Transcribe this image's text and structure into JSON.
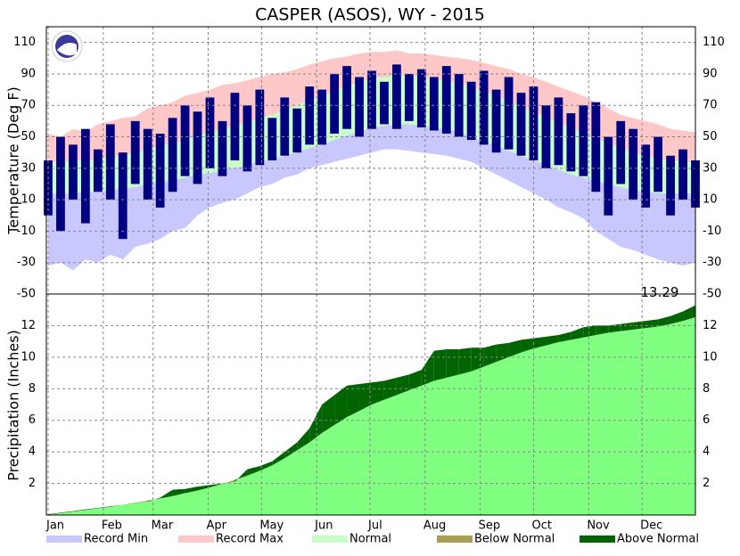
{
  "title": "CASPER (ASOS), WY - 2015",
  "legend": [
    {
      "name": "Record Min",
      "color": "#c8c8ff"
    },
    {
      "name": "Record Max",
      "color": "#ffc8c8"
    },
    {
      "name": "Normal",
      "color": "#c8ffc8"
    },
    {
      "name": "Below Normal",
      "color": "#a8a050"
    },
    {
      "name": "Above Normal",
      "color": "#006400"
    }
  ],
  "chart_data": [
    {
      "type": "temperature-band",
      "y_label": "Temperature (Deg F)",
      "x": [
        1,
        8,
        15,
        22,
        29,
        36,
        43,
        50,
        57,
        64,
        71,
        78,
        85,
        92,
        99,
        106,
        113,
        120,
        127,
        134,
        141,
        148,
        155,
        162,
        169,
        176,
        183,
        190,
        197,
        204,
        211,
        218,
        225,
        232,
        239,
        246,
        253,
        260,
        267,
        274,
        281,
        288,
        295,
        302,
        309,
        316,
        323,
        330,
        337,
        344,
        351,
        358,
        365
      ],
      "xlim": [
        0,
        365
      ],
      "ylim": [
        -50,
        120
      ],
      "yticks": [
        -50,
        -30,
        -10,
        10,
        30,
        50,
        70,
        90,
        110
      ],
      "grid": true,
      "series": [
        {
          "name": "Record Max",
          "color": "#ffc8c8",
          "values": [
            52,
            50,
            55,
            53,
            58,
            60,
            62,
            63,
            68,
            70,
            72,
            76,
            78,
            80,
            83,
            84,
            86,
            88,
            90,
            91,
            93,
            96,
            98,
            100,
            101,
            103,
            104,
            104,
            105,
            103,
            103,
            102,
            101,
            100,
            99,
            97,
            95,
            93,
            90,
            88,
            85,
            82,
            79,
            76,
            72,
            68,
            64,
            62,
            60,
            58,
            55,
            54,
            53
          ]
        },
        {
          "name": "Record Min",
          "color": "#c8c8ff",
          "values": [
            -32,
            -30,
            -35,
            -28,
            -30,
            -25,
            -28,
            -20,
            -18,
            -15,
            -10,
            -8,
            0,
            5,
            8,
            10,
            14,
            18,
            20,
            24,
            26,
            30,
            32,
            34,
            36,
            38,
            40,
            42,
            42,
            41,
            40,
            39,
            38,
            36,
            34,
            30,
            26,
            22,
            18,
            14,
            10,
            5,
            2,
            -2,
            -10,
            -15,
            -20,
            -22,
            -25,
            -28,
            -30,
            -32,
            -30
          ]
        },
        {
          "name": "Normal",
          "color": "#c8ffc8",
          "values": [
            34,
            34,
            35,
            35,
            36,
            37,
            38,
            40,
            42,
            44,
            46,
            48,
            51,
            53,
            55,
            57,
            59,
            62,
            64,
            67,
            70,
            73,
            76,
            79,
            82,
            85,
            87,
            88,
            89,
            89,
            88,
            87,
            86,
            84,
            82,
            79,
            76,
            73,
            69,
            66,
            62,
            59,
            56,
            52,
            49,
            46,
            43,
            40,
            38,
            36,
            35,
            34,
            34
          ],
          "low": [
            14,
            14,
            14,
            15,
            15,
            16,
            17,
            18,
            20,
            21,
            22,
            24,
            26,
            27,
            29,
            30,
            32,
            34,
            36,
            38,
            40,
            43,
            45,
            48,
            51,
            53,
            56,
            57,
            58,
            58,
            57,
            56,
            55,
            53,
            50,
            47,
            44,
            41,
            38,
            35,
            32,
            29,
            26,
            24,
            22,
            20,
            18,
            16,
            15,
            14,
            14,
            14,
            14
          ]
        },
        {
          "color": "#000080",
          "values": [
            35,
            50,
            45,
            55,
            42,
            58,
            40,
            60,
            55,
            52,
            62,
            70,
            66,
            75,
            60,
            78,
            70,
            80,
            62,
            75,
            68,
            82,
            80,
            90,
            95,
            88,
            92,
            85,
            96,
            90,
            93,
            88,
            95,
            90,
            85,
            92,
            80,
            88,
            78,
            82,
            70,
            75,
            65,
            70,
            72,
            50,
            60,
            55,
            45,
            50,
            38,
            42,
            35
          ],
          "low": [
            0,
            -10,
            10,
            -5,
            15,
            10,
            -15,
            20,
            10,
            5,
            15,
            25,
            20,
            30,
            25,
            35,
            28,
            32,
            35,
            38,
            40,
            45,
            45,
            52,
            55,
            50,
            55,
            58,
            55,
            60,
            56,
            54,
            52,
            50,
            48,
            45,
            40,
            42,
            38,
            35,
            30,
            32,
            28,
            25,
            15,
            0,
            20,
            10,
            5,
            15,
            0,
            10,
            5
          ]
        }
      ]
    },
    {
      "type": "precip-cumulative",
      "y_label": "Precipitation (Inches)",
      "x": [
        1,
        8,
        15,
        22,
        29,
        36,
        43,
        50,
        57,
        64,
        71,
        78,
        85,
        92,
        99,
        106,
        113,
        120,
        127,
        134,
        141,
        148,
        155,
        162,
        169,
        176,
        183,
        190,
        197,
        204,
        211,
        218,
        225,
        232,
        239,
        246,
        253,
        260,
        267,
        274,
        281,
        288,
        295,
        302,
        309,
        316,
        323,
        330,
        337,
        344,
        351,
        358,
        365
      ],
      "xlim": [
        0,
        365
      ],
      "xticks": [
        {
          "value": 1,
          "label": "Jan"
        },
        {
          "value": 32,
          "label": "Feb"
        },
        {
          "value": 60,
          "label": "Mar"
        },
        {
          "value": 91,
          "label": "Apr"
        },
        {
          "value": 121,
          "label": "May"
        },
        {
          "value": 152,
          "label": "Jun"
        },
        {
          "value": 182,
          "label": "Jul"
        },
        {
          "value": 213,
          "label": "Aug"
        },
        {
          "value": 244,
          "label": "Sep"
        },
        {
          "value": 274,
          "label": "Oct"
        },
        {
          "value": 305,
          "label": "Nov"
        },
        {
          "value": 335,
          "label": "Dec"
        }
      ],
      "ylim": [
        0,
        14
      ],
      "yticks": [
        2,
        4,
        6,
        8,
        10,
        12
      ],
      "grid": true,
      "series": [
        {
          "color": "#80ff80",
          "values": [
            0.02,
            0.12,
            0.22,
            0.32,
            0.42,
            0.52,
            0.65,
            0.78,
            0.9,
            1.05,
            1.2,
            1.38,
            1.55,
            1.75,
            1.98,
            2.22,
            2.5,
            2.8,
            3.15,
            3.6,
            4.1,
            4.6,
            5.2,
            5.7,
            6.2,
            6.6,
            7.0,
            7.3,
            7.6,
            7.9,
            8.2,
            8.5,
            8.7,
            8.9,
            9.1,
            9.4,
            9.7,
            10.0,
            10.3,
            10.55,
            10.75,
            10.95,
            11.1,
            11.25,
            11.4,
            11.55,
            11.65,
            11.75,
            11.85,
            11.95,
            12.1,
            12.3,
            12.53
          ]
        },
        {
          "color": "#006400",
          "below_color": "#a8a050",
          "values": [
            0.05,
            0.15,
            0.25,
            0.35,
            0.45,
            0.55,
            0.65,
            0.75,
            0.85,
            1.1,
            1.6,
            1.65,
            1.8,
            1.9,
            2.0,
            2.1,
            2.9,
            3.1,
            3.4,
            4.0,
            4.6,
            5.5,
            7.0,
            7.6,
            8.2,
            8.3,
            8.4,
            8.5,
            8.7,
            8.9,
            9.2,
            10.4,
            10.5,
            10.5,
            10.6,
            10.6,
            10.8,
            10.9,
            11.1,
            11.2,
            11.3,
            11.4,
            11.6,
            11.9,
            12.0,
            12.0,
            12.1,
            12.2,
            12.3,
            12.4,
            12.6,
            12.9,
            13.29
          ]
        }
      ]
    }
  ]
}
